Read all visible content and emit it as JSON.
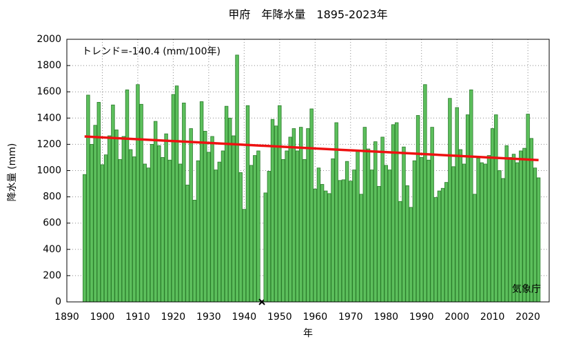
{
  "chart_data": {
    "type": "bar",
    "title": "甲府　年降水量　1895-2023年",
    "annotation": "トレンド=-140.4 (mm/100年)",
    "source": "気象庁",
    "xlabel": "年",
    "ylabel": "降水量 (mm)",
    "color": "#5cbf5c",
    "edge_color": "#2a7a2a",
    "x": [
      1895,
      1896,
      1897,
      1898,
      1899,
      1900,
      1901,
      1902,
      1903,
      1904,
      1905,
      1906,
      1907,
      1908,
      1909,
      1910,
      1911,
      1912,
      1913,
      1914,
      1915,
      1916,
      1917,
      1918,
      1919,
      1920,
      1921,
      1922,
      1923,
      1924,
      1925,
      1926,
      1927,
      1928,
      1929,
      1930,
      1931,
      1932,
      1933,
      1934,
      1935,
      1936,
      1937,
      1938,
      1939,
      1940,
      1941,
      1942,
      1943,
      1944,
      1945,
      1946,
      1947,
      1948,
      1949,
      1950,
      1951,
      1952,
      1953,
      1954,
      1955,
      1956,
      1957,
      1958,
      1959,
      1960,
      1961,
      1962,
      1963,
      1964,
      1965,
      1966,
      1967,
      1968,
      1969,
      1970,
      1971,
      1972,
      1973,
      1974,
      1975,
      1976,
      1977,
      1978,
      1979,
      1980,
      1981,
      1982,
      1983,
      1984,
      1985,
      1986,
      1987,
      1988,
      1989,
      1990,
      1991,
      1992,
      1993,
      1994,
      1995,
      1996,
      1997,
      1998,
      1999,
      2000,
      2001,
      2002,
      2003,
      2004,
      2005,
      2006,
      2007,
      2008,
      2009,
      2010,
      2011,
      2012,
      2013,
      2014,
      2015,
      2016,
      2017,
      2018,
      2019,
      2020,
      2021,
      2022,
      2023
    ],
    "values": [
      970,
      1575,
      1200,
      1345,
      1520,
      1045,
      1120,
      1265,
      1500,
      1310,
      1085,
      1260,
      1615,
      1160,
      1105,
      1655,
      1505,
      1050,
      1020,
      1200,
      1375,
      1190,
      1100,
      1280,
      1080,
      1580,
      1645,
      1050,
      1515,
      890,
      1320,
      775,
      1075,
      1525,
      1300,
      1140,
      1260,
      1005,
      1065,
      1150,
      1490,
      1400,
      1265,
      1880,
      985,
      705,
      1495,
      1040,
      1115,
      1150,
      null,
      830,
      995,
      1390,
      1340,
      1495,
      1085,
      1150,
      1255,
      1320,
      1150,
      1330,
      1085,
      1320,
      1470,
      860,
      1020,
      895,
      845,
      825,
      1090,
      1365,
      925,
      930,
      1070,
      920,
      1005,
      1150,
      820,
      1330,
      1165,
      1005,
      1220,
      880,
      1255,
      1040,
      1005,
      1350,
      1365,
      765,
      1180,
      885,
      720,
      1075,
      1420,
      1100,
      1655,
      1080,
      1330,
      795,
      845,
      865,
      910,
      1550,
      1030,
      1480,
      1160,
      1050,
      1425,
      1615,
      820,
      1095,
      1060,
      1050,
      1115,
      1320,
      1425,
      1000,
      940,
      1190,
      1100,
      1125,
      1060,
      1150,
      1170,
      1430,
      1245,
      1020,
      945
    ],
    "trend": {
      "color": "#ee1111",
      "x": [
        1895,
        2023
      ],
      "values": [
        1260,
        1080
      ]
    },
    "xlim": [
      1890,
      2026
    ],
    "xticks": [
      1890,
      1900,
      1910,
      1920,
      1930,
      1940,
      1950,
      1960,
      1970,
      1980,
      1990,
      2000,
      2010,
      2020
    ],
    "ylim": [
      0,
      2000
    ],
    "yticks": [
      0,
      200,
      400,
      600,
      800,
      1000,
      1200,
      1400,
      1600,
      1800,
      2000
    ],
    "grid": true
  }
}
